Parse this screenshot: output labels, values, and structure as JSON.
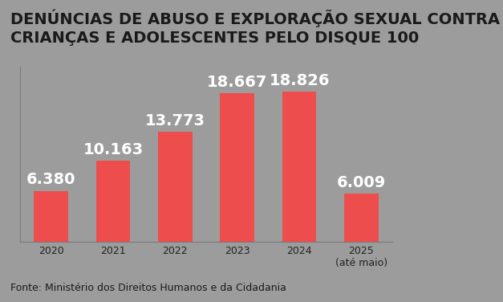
{
  "chart_data": {
    "type": "bar",
    "title": "DENÚNCIAS DE ABUSO E EXPLORAÇÃO SEXUAL CONTRA\nCRIANÇAS E ADOLESCENTES PELO DISQUE 100",
    "source": "Fonte: Ministério dos Direitos Humanos e da Cidadania",
    "categories": [
      "2020",
      "2021",
      "2022",
      "2023",
      "2024",
      "2025\n(até maio)"
    ],
    "values": [
      6380,
      10163,
      13773,
      18667,
      18826,
      6009
    ],
    "value_labels": [
      "6.380",
      "10.163",
      "13.773",
      "18.667",
      "18.826",
      "6.009"
    ],
    "color": "#ee4d4d",
    "ylim": [
      0,
      22000
    ],
    "data_labels": true,
    "tick_labels": "x",
    "grid": false
  }
}
